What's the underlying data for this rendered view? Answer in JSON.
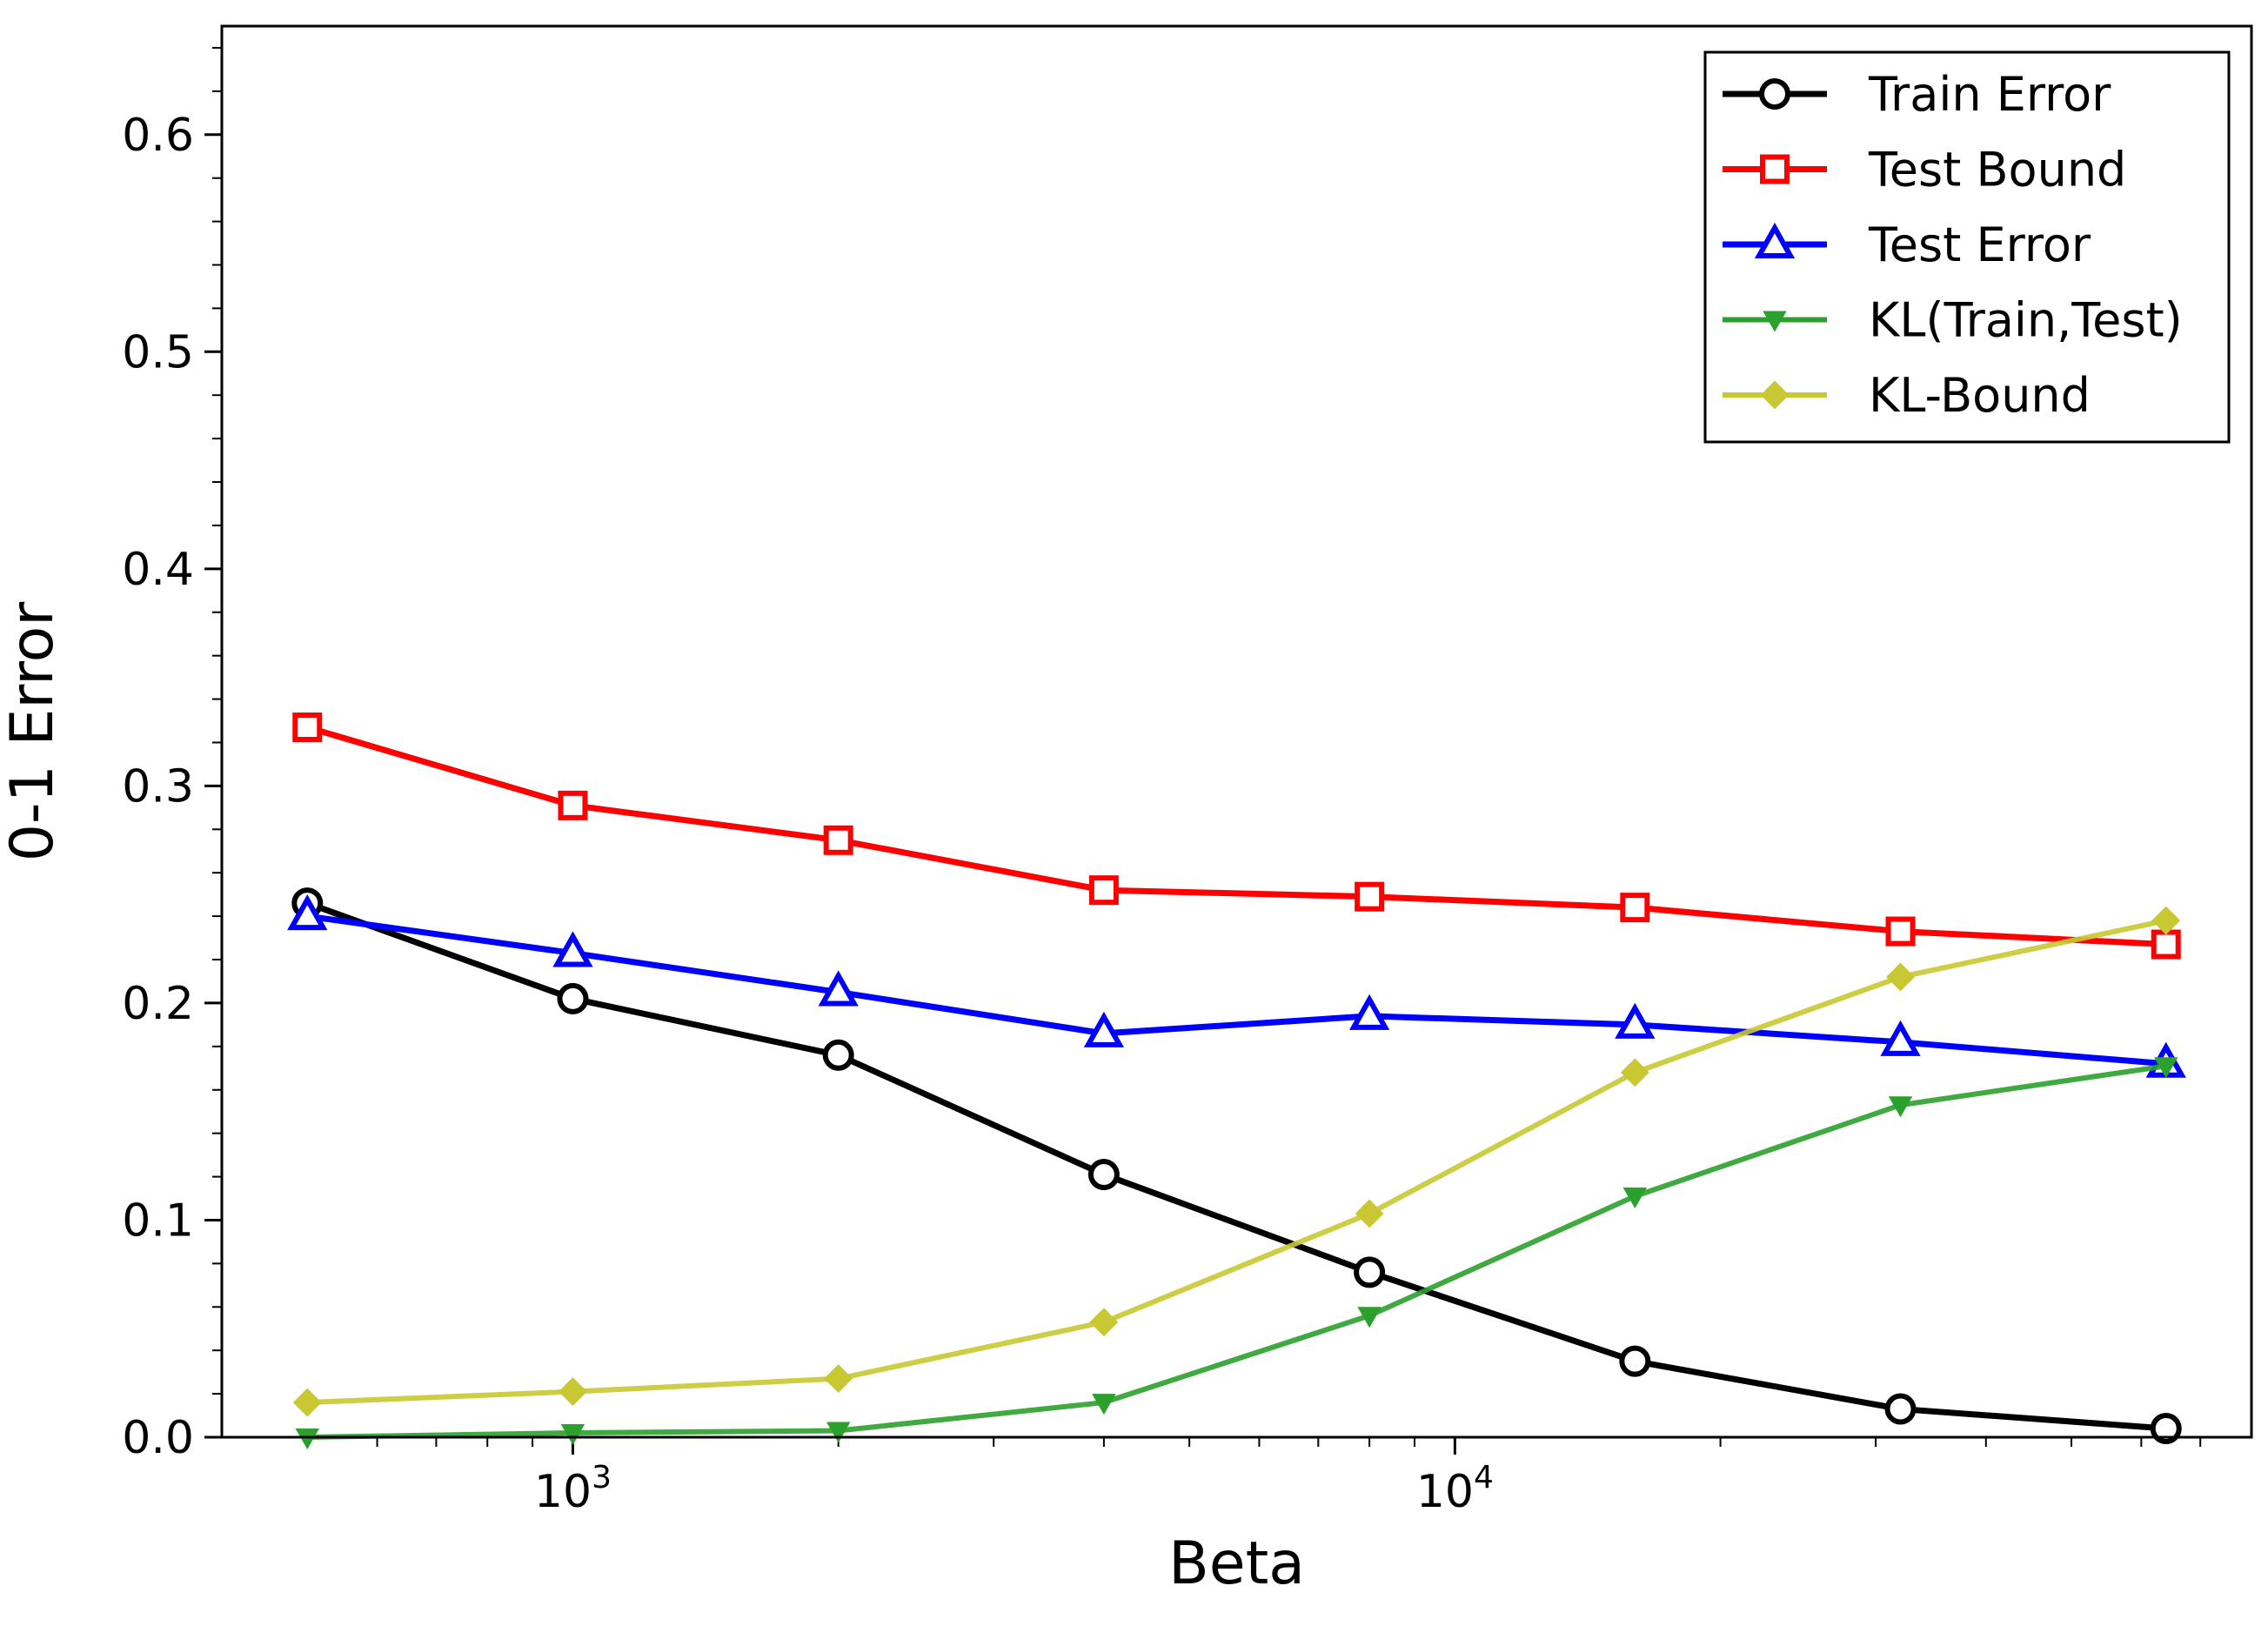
{
  "chart_data": {
    "type": "line",
    "xlabel": "Beta",
    "ylabel": "0-1 Error",
    "xscale": "log",
    "xlim": [
      400,
      80000
    ],
    "ylim": [
      0,
      0.65
    ],
    "x": [
      500,
      1000,
      2000,
      4000,
      8000,
      16000,
      32000,
      64000
    ],
    "x_ticks": [
      {
        "value": 1000,
        "base": "10",
        "exp": "3"
      },
      {
        "value": 10000,
        "base": "10",
        "exp": "4"
      }
    ],
    "y_ticks": [
      0.0,
      0.1,
      0.2,
      0.3,
      0.4,
      0.5,
      0.6
    ],
    "y_tick_labels": [
      "0.0",
      "0.1",
      "0.2",
      "0.3",
      "0.4",
      "0.5",
      "0.6"
    ],
    "grid": false,
    "legend_position": "top-right",
    "series": [
      {
        "name": "Train Error",
        "color": "#000000",
        "marker": "circle",
        "values": [
          0.246,
          0.202,
          0.176,
          0.121,
          0.076,
          0.035,
          0.013,
          0.004
        ]
      },
      {
        "name": "Test Bound",
        "color": "#ff0000",
        "marker": "square",
        "values": [
          0.327,
          0.291,
          0.275,
          0.252,
          0.249,
          0.244,
          0.233,
          0.227
        ]
      },
      {
        "name": "Test Error",
        "color": "#0000ff",
        "marker": "triangle-up",
        "values": [
          0.24,
          0.223,
          0.205,
          0.186,
          0.194,
          0.19,
          0.182,
          0.172
        ]
      },
      {
        "name": "KL(Train,Test)",
        "color": "#2ca02c",
        "marker": "triangle-down",
        "values": [
          0.0,
          0.002,
          0.003,
          0.016,
          0.056,
          0.111,
          0.153,
          0.171
        ]
      },
      {
        "name": "KL-Bound",
        "color": "#c8c832",
        "marker": "diamond",
        "values": [
          0.016,
          0.021,
          0.027,
          0.053,
          0.103,
          0.168,
          0.212,
          0.238
        ]
      }
    ]
  }
}
